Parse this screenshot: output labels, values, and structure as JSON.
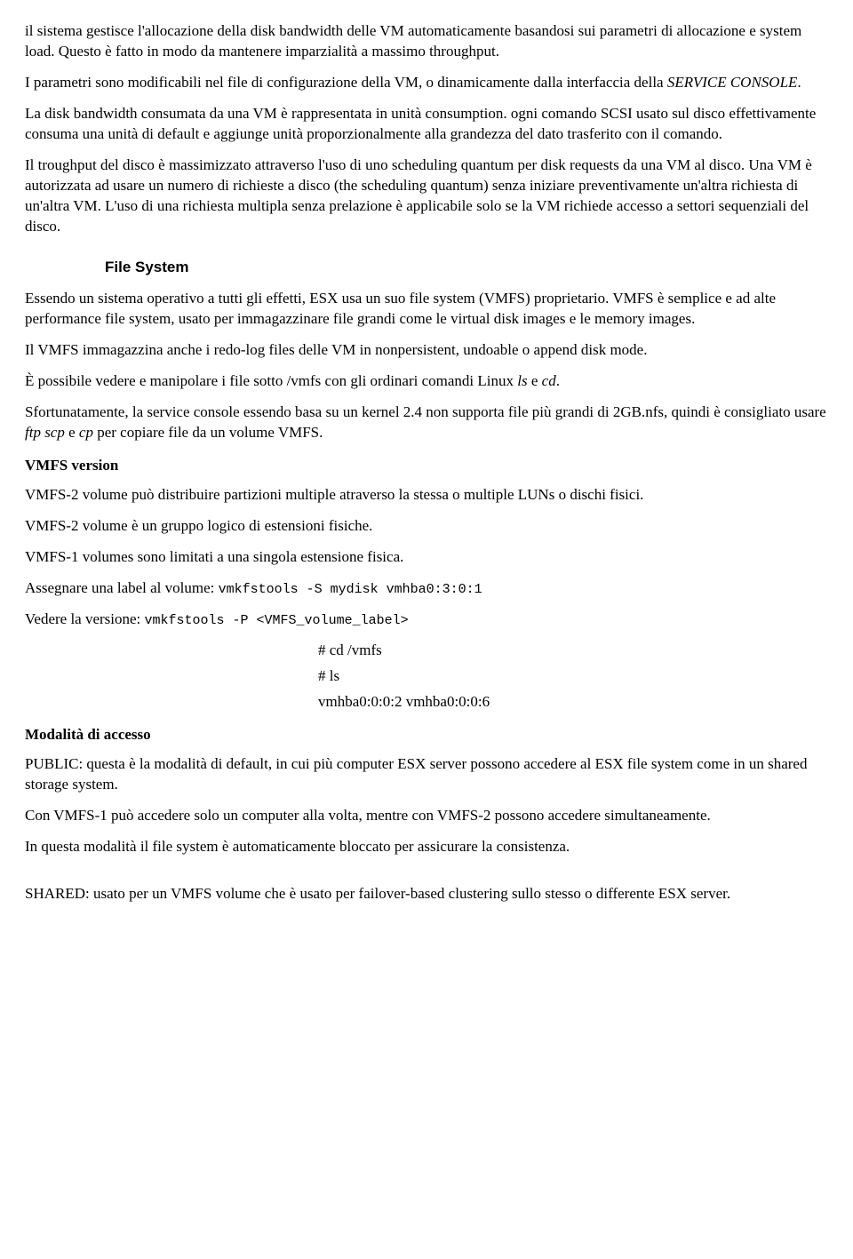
{
  "para1_a": "il sistema gestisce l'allocazione della disk bandwidth delle VM automaticamente basandosi sui parametri di allocazione e system load. Questo è fatto in modo da mantenere imparzialità a massimo throughput.",
  "para2_a": "I parametri sono modificabili nel file di configurazione della VM, o dinamicamente dalla interfaccia della ",
  "para2_b": "SERVICE CONSOLE",
  "para2_c": ".",
  "para3": "La disk bandwidth consumata da una VM è rappresentata in unità consumption. ogni comando SCSI usato sul disco effettivamente consuma una unità di default e aggiunge unità proporzionalmente alla grandezza del dato trasferito con il comando.",
  "para4": "Il troughput del disco è massimizzato attraverso l'uso di uno scheduling quantum per disk requests da una VM al disco. Una VM è autorizzata ad usare un numero di richieste a disco (the scheduling quantum) senza iniziare preventivamente un'altra richiesta di un'altra VM. L'uso di una richiesta multipla senza prelazione è applicabile solo se la VM richiede accesso a settori sequenziali del disco.",
  "heading_fs": "File System",
  "fs_p1": "Essendo un sistema operativo a tutti gli effetti, ESX usa un suo file system (VMFS) proprietario. VMFS è semplice e ad alte performance file system, usato per immagazzinare file grandi come le virtual disk images e le memory images.",
  "fs_p2": "Il VMFS immagazzina anche i redo-log files delle VM in nonpersistent, undoable o append disk mode.",
  "fs_p3_a": "È possibile vedere e manipolare i file sotto /vmfs con gli ordinari comandi Linux ",
  "fs_p3_ls": "ls",
  "fs_p3_and": " e ",
  "fs_p3_cd": "cd",
  "fs_p3_dot": ".",
  "fs_p4_a": "Sfortunatamente, la service console essendo basa su un kernel 2.4 non supporta file più grandi di 2GB.nfs, quindi è consigliato usare ",
  "fs_p4_ftp": "ftp scp",
  "fs_p4_and": " e ",
  "fs_p4_cp": "cp",
  "fs_p4_b": " per copiare file da un volume VMFS.",
  "sub_vmfs_version": "VMFS version",
  "vv_p1": "VMFS-2 volume può distribuire partizioni multiple atraverso la stessa o multiple LUNs o dischi fisici.",
  "vv_p2": "VMFS-2 volume è un gruppo logico di estensioni fisiche.",
  "vv_p3": "VMFS-1 volumes sono limitati a una singola estensione fisica.",
  "vv_p4_a": "Assegnare una label al volume: ",
  "vv_p4_cmd": "vmkfstools -S mydisk vmhba0:3:0:1",
  "vv_p5_a": "Vedere la versione: ",
  "vv_p5_cmd": "vmkfstools -P <VMFS_volume_label>",
  "cmd_cd": "# cd /vmfs",
  "cmd_ls": "# ls",
  "cmd_out": "vmhba0:0:0:2 vmhba0:0:0:6",
  "sub_mod_acc": "Modalità di accesso",
  "ma_p1": "PUBLIC: questa è la modalità di default, in cui più computer ESX server possono accedere al ESX file system come in un shared storage system.",
  "ma_p2": "Con VMFS-1 può accedere solo un computer alla volta, mentre con VMFS-2 possono accedere simultaneamente.",
  "ma_p3": "In questa modalità il file system è automaticamente bloccato per assicurare la consistenza.",
  "ma_p4": "SHARED: usato per un VMFS volume che è usato per failover-based clustering sullo stesso o differente ESX server."
}
